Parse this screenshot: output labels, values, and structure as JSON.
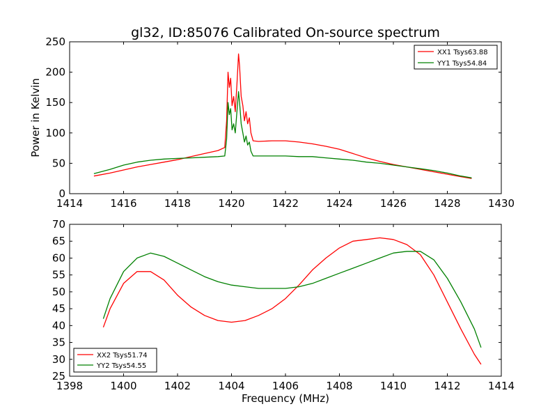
{
  "chart_data": [
    {
      "type": "line",
      "title": "gl32, ID:85076 Calibrated On-source spectrum",
      "xlabel": "",
      "ylabel": "Power in Kelvin",
      "xlim": [
        1414,
        1430
      ],
      "ylim": [
        0,
        250
      ],
      "xticks": [
        "1414",
        "1416",
        "1418",
        "1420",
        "1422",
        "1424",
        "1426",
        "1428",
        "1430"
      ],
      "yticks": [
        "0",
        "50",
        "100",
        "150",
        "200",
        "250"
      ],
      "legend_position": "top-right",
      "grid": false,
      "series": [
        {
          "name": "XX1 Tsys63.88",
          "color": "#ff0000",
          "x": [
            1414.9,
            1415.5,
            1416.0,
            1416.5,
            1417.0,
            1417.5,
            1418.0,
            1418.5,
            1419.0,
            1419.5,
            1419.75,
            1419.82,
            1419.87,
            1419.92,
            1419.97,
            1420.02,
            1420.08,
            1420.14,
            1420.2,
            1420.26,
            1420.3,
            1420.36,
            1420.42,
            1420.48,
            1420.54,
            1420.6,
            1420.66,
            1420.72,
            1420.8,
            1421.0,
            1421.5,
            1422.0,
            1422.5,
            1423.0,
            1423.5,
            1424.0,
            1424.5,
            1425.0,
            1425.5,
            1426.0,
            1426.5,
            1427.0,
            1427.5,
            1428.0,
            1428.5,
            1428.9
          ],
          "y": [
            29,
            34,
            39,
            44,
            48,
            52,
            56,
            61,
            66,
            71,
            76,
            120,
            200,
            175,
            190,
            145,
            160,
            135,
            180,
            230,
            210,
            160,
            145,
            120,
            135,
            115,
            125,
            100,
            87,
            86,
            87,
            87,
            85,
            82,
            78,
            73,
            66,
            59,
            53,
            48,
            44,
            40,
            36,
            32,
            28,
            25
          ]
        },
        {
          "name": "YY1 Tsys54.84",
          "color": "#008000",
          "x": [
            1414.9,
            1415.5,
            1416.0,
            1416.5,
            1417.0,
            1417.5,
            1418.0,
            1418.5,
            1419.0,
            1419.5,
            1419.75,
            1419.82,
            1419.87,
            1419.92,
            1419.97,
            1420.02,
            1420.08,
            1420.14,
            1420.2,
            1420.26,
            1420.3,
            1420.36,
            1420.42,
            1420.48,
            1420.54,
            1420.6,
            1420.66,
            1420.72,
            1420.8,
            1421.0,
            1421.5,
            1422.0,
            1422.5,
            1423.0,
            1423.5,
            1424.0,
            1424.5,
            1425.0,
            1425.5,
            1426.0,
            1426.5,
            1427.0,
            1427.5,
            1428.0,
            1428.5,
            1428.9
          ],
          "y": [
            33,
            40,
            47,
            52,
            55,
            57,
            58,
            59,
            60,
            61,
            62,
            90,
            150,
            130,
            140,
            105,
            115,
            100,
            135,
            168,
            150,
            115,
            100,
            85,
            95,
            80,
            85,
            70,
            62,
            62,
            62,
            62,
            61,
            61,
            59,
            57,
            55,
            52,
            50,
            47,
            44,
            41,
            38,
            34,
            29,
            26
          ]
        }
      ]
    },
    {
      "type": "line",
      "title": "",
      "xlabel": "Frequency (MHz)",
      "ylabel": "",
      "xlim": [
        1398,
        1414
      ],
      "ylim": [
        25,
        70
      ],
      "xticks": [
        "1398",
        "1400",
        "1402",
        "1404",
        "1406",
        "1408",
        "1410",
        "1412",
        "1414"
      ],
      "yticks": [
        "25",
        "30",
        "35",
        "40",
        "45",
        "50",
        "55",
        "60",
        "65",
        "70"
      ],
      "legend_position": "bottom-left",
      "grid": false,
      "series": [
        {
          "name": "XX2 Tsys51.74",
          "color": "#ff0000",
          "x": [
            1399.25,
            1399.5,
            1400.0,
            1400.5,
            1401.0,
            1401.5,
            1402.0,
            1402.5,
            1403.0,
            1403.5,
            1404.0,
            1404.5,
            1405.0,
            1405.5,
            1406.0,
            1406.5,
            1407.0,
            1407.5,
            1408.0,
            1408.5,
            1409.0,
            1409.5,
            1410.0,
            1410.5,
            1411.0,
            1411.5,
            1412.0,
            1412.5,
            1413.0,
            1413.25
          ],
          "y": [
            39.5,
            45,
            52.5,
            56,
            56,
            53.5,
            49,
            45.5,
            43,
            41.5,
            41,
            41.5,
            43,
            45,
            48,
            52,
            56.5,
            60,
            63,
            65,
            65.5,
            66,
            65.5,
            64,
            61,
            55,
            47,
            39,
            31.5,
            28.5
          ]
        },
        {
          "name": "YY2 Tsys54.55",
          "color": "#008000",
          "x": [
            1399.25,
            1399.5,
            1400.0,
            1400.5,
            1401.0,
            1401.5,
            1402.0,
            1402.5,
            1403.0,
            1403.5,
            1404.0,
            1404.5,
            1405.0,
            1405.5,
            1406.0,
            1406.5,
            1407.0,
            1407.5,
            1408.0,
            1408.5,
            1409.0,
            1409.5,
            1410.0,
            1410.5,
            1411.0,
            1411.5,
            1412.0,
            1412.5,
            1413.0,
            1413.25
          ],
          "y": [
            42,
            48,
            56,
            60,
            61.5,
            60.5,
            58.5,
            56.5,
            54.5,
            53,
            52,
            51.5,
            51,
            51,
            51,
            51.5,
            52.5,
            54,
            55.5,
            57,
            58.5,
            60,
            61.5,
            62,
            62,
            59.5,
            54,
            47,
            39,
            33.5
          ]
        }
      ]
    }
  ]
}
